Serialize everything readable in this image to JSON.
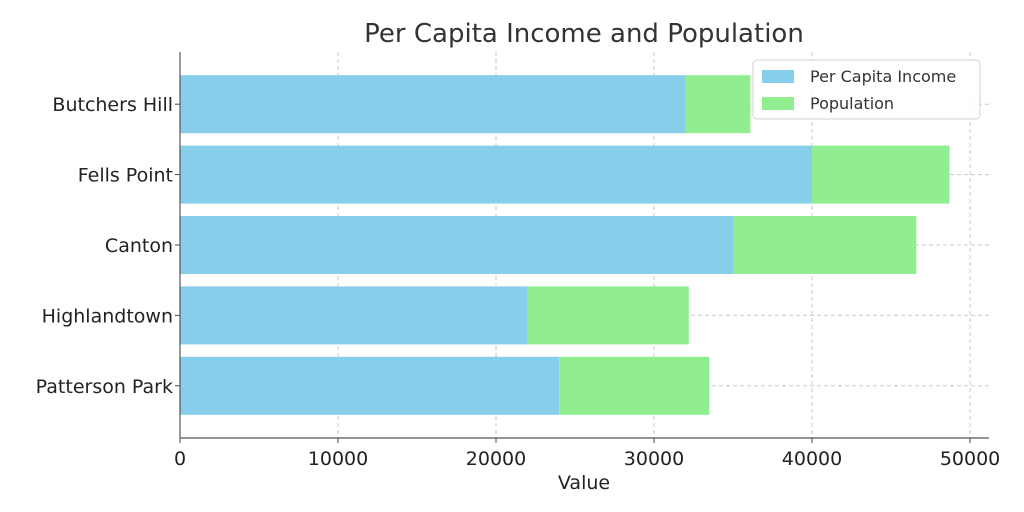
{
  "chart_data": {
    "type": "bar",
    "orientation": "horizontal",
    "stacked": true,
    "title": "Per Capita Income and Population",
    "xlabel": "Value",
    "ylabel": "",
    "categories": [
      "Patterson Park",
      "Highlandtown",
      "Canton",
      "Fells Point",
      "Butchers Hill"
    ],
    "series": [
      {
        "name": "Per Capita Income",
        "color": "#87CEEB",
        "values": [
          24000,
          22000,
          35000,
          40000,
          32000
        ]
      },
      {
        "name": "Population",
        "color": "#90EE90",
        "values": [
          9500,
          10200,
          11600,
          8700,
          4100
        ]
      }
    ],
    "xlim": [
      0,
      51200
    ],
    "xticks": [
      0,
      10000,
      20000,
      30000,
      40000,
      50000
    ],
    "xtick_labels": [
      "0",
      "10000",
      "20000",
      "30000",
      "40000",
      "50000"
    ],
    "grid": true,
    "legend_position": "top-right"
  }
}
